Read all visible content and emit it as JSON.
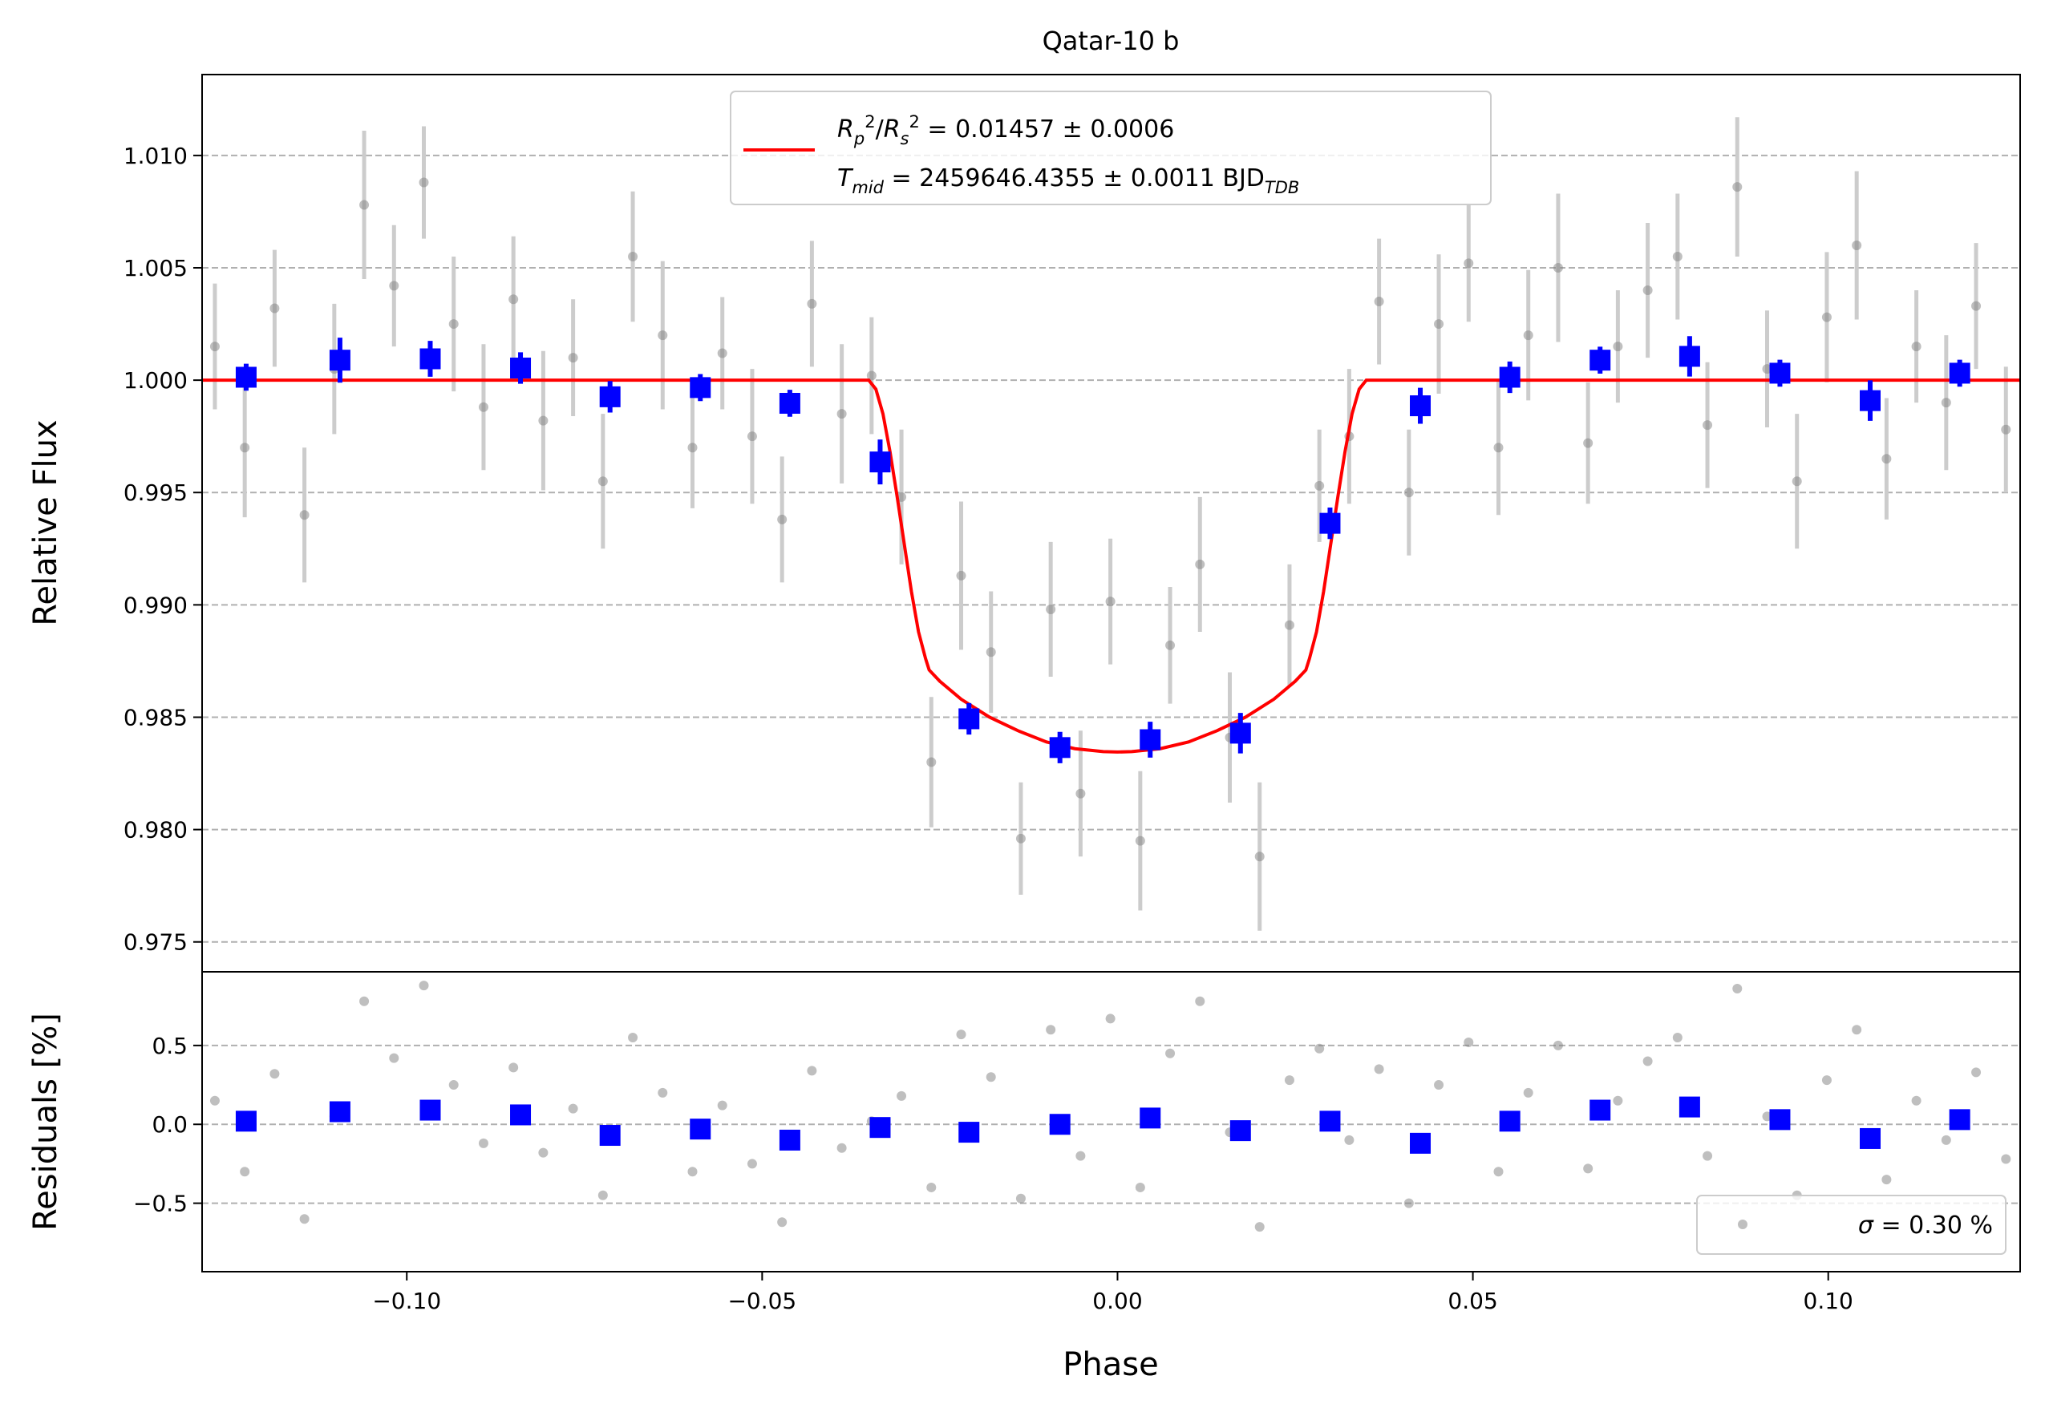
{
  "chart_data": [
    {
      "type": "scatter",
      "title": "Qatar-10 b",
      "ylabel": "Relative Flux",
      "xlim": [
        -0.1288,
        0.127
      ],
      "ylim": [
        0.97367,
        1.0136
      ],
      "yticks": [
        0.975,
        {
          "value": 0.98,
          "label": "0.980"
        },
        0.985,
        {
          "value": 0.99,
          "label": "0.990"
        },
        0.995,
        {
          "value": 1.0,
          "label": "1.000"
        },
        1.005,
        {
          "value": 1.01,
          "label": "1.010"
        }
      ],
      "grid": true,
      "series": [
        {
          "color": "#808080",
          "error_color": "#cccccc",
          "marker": "circle",
          "x": [
            -0.127,
            -0.1228,
            -0.1186,
            -0.1144,
            -0.1102,
            -0.106,
            -0.1018,
            -0.0976,
            -0.0934,
            -0.0892,
            -0.085,
            -0.0808,
            -0.0766,
            -0.0724,
            -0.0682,
            -0.064,
            -0.0598,
            -0.0556,
            -0.0514,
            -0.0472,
            -0.043,
            -0.0388,
            -0.0346,
            -0.0304,
            -0.0262,
            -0.022,
            -0.0178,
            -0.0136,
            -0.0094,
            -0.0052,
            -0.001,
            0.0032,
            0.0074,
            0.0116,
            0.0158,
            0.02,
            0.0242,
            0.0284,
            0.0326,
            0.0368,
            0.041,
            0.0452,
            0.0494,
            0.0536,
            0.0578,
            0.062,
            0.0662,
            0.0704,
            0.0746,
            0.0788,
            0.083,
            0.0872,
            0.0914,
            0.0956,
            0.0998,
            0.104,
            0.1082,
            0.1124,
            0.1166,
            0.1208,
            0.125
          ],
          "values": [
            1.0015,
            0.997,
            1.0032,
            0.994,
            1.0005,
            1.0078,
            1.0042,
            1.0088,
            1.0025,
            0.9988,
            1.0036,
            0.9982,
            1.001,
            0.9955,
            1.0055,
            1.002,
            0.997,
            1.0012,
            0.9975,
            0.9938,
            1.0034,
            0.9985,
            1.0002,
            0.9948,
            0.983,
            0.9913,
            0.9879,
            0.9796,
            0.9898,
            0.9816,
            0.99015,
            0.9795,
            0.9882,
            0.9918,
            0.9841,
            0.9788,
            0.9891,
            0.9953,
            0.9975,
            1.0035,
            0.995,
            1.0025,
            1.0052,
            0.997,
            1.002,
            1.005,
            0.9972,
            1.0015,
            1.004,
            1.0055,
            0.998,
            1.0086,
            1.0005,
            0.9955,
            1.0028,
            1.006,
            0.9965,
            1.0015,
            0.999,
            1.0033,
            0.9978
          ],
          "errors": [
            0.0028,
            0.0031,
            0.0026,
            0.003,
            0.0029,
            0.0033,
            0.0027,
            0.0025,
            0.003,
            0.0028,
            0.0028,
            0.0031,
            0.0026,
            0.003,
            0.0029,
            0.0033,
            0.0027,
            0.0025,
            0.003,
            0.0028,
            0.0028,
            0.0031,
            0.0026,
            0.003,
            0.0029,
            0.0033,
            0.0027,
            0.0025,
            0.003,
            0.0028,
            0.0028,
            0.0031,
            0.0026,
            0.003,
            0.0029,
            0.0033,
            0.0027,
            0.0025,
            0.003,
            0.0028,
            0.0028,
            0.0031,
            0.0026,
            0.003,
            0.0029,
            0.0033,
            0.0027,
            0.0025,
            0.003,
            0.0028,
            0.0028,
            0.0031,
            0.0026,
            0.003,
            0.0029,
            0.0033,
            0.0027,
            0.0025,
            0.003,
            0.0028,
            0.0028
          ]
        },
        {
          "type": "line",
          "color": "#ff0000",
          "x": [
            -0.1288,
            -0.035,
            -0.034,
            -0.033,
            -0.032,
            -0.031,
            -0.03,
            -0.029,
            -0.028,
            -0.027,
            -0.0265,
            -0.025,
            -0.022,
            -0.018,
            -0.014,
            -0.01,
            -0.006,
            -0.002,
            0,
            0.002,
            0.006,
            0.01,
            0.014,
            0.018,
            0.022,
            0.025,
            0.0265,
            0.027,
            0.028,
            0.029,
            0.03,
            0.031,
            0.032,
            0.033,
            0.034,
            0.035,
            0.127
          ],
          "values": [
            1,
            1,
            0.9996,
            0.9985,
            0.9968,
            0.9948,
            0.9927,
            0.9906,
            0.9888,
            0.9876,
            0.9871,
            0.9866,
            0.9858,
            0.985,
            0.9844,
            0.9839,
            0.9836,
            0.98347,
            0.98345,
            0.98347,
            0.9836,
            0.9839,
            0.9844,
            0.985,
            0.9858,
            0.9866,
            0.9871,
            0.9876,
            0.9888,
            0.9906,
            0.9927,
            0.9948,
            0.9968,
            0.9985,
            0.9996,
            1,
            1
          ]
        },
        {
          "color": "#0000ff",
          "error_color": "#0000ff",
          "marker": "square",
          "x": [
            -0.1226,
            -0.1094,
            -0.0967,
            -0.084,
            -0.0714,
            -0.0587,
            -0.0461,
            -0.0334,
            -0.0209,
            -0.0081,
            0.0046,
            0.0173,
            0.0299,
            0.0426,
            0.0552,
            0.0679,
            0.0805,
            0.0932,
            0.1059,
            0.1185
          ],
          "values": [
            1.00013,
            1.00089,
            1.00095,
            1.00054,
            0.99926,
            0.99967,
            0.99897,
            0.99636,
            0.98493,
            0.98365,
            0.984,
            0.98429,
            0.99363,
            0.99886,
            1.00013,
            1.00089,
            1.00106,
            1.00031,
            0.99909,
            1.00031
          ],
          "errors": [
            0.0006,
            0.001,
            0.0008,
            0.0007,
            0.0007,
            0.0006,
            0.0006,
            0.001,
            0.0007,
            0.0007,
            0.0008,
            0.0009,
            0.0007,
            0.0008,
            0.0007,
            0.0006,
            0.0009,
            0.0006,
            0.0009,
            0.0006
          ]
        }
      ],
      "legend": {
        "loc": "upper center",
        "lines": [
          {
            "parts": [
              "R",
              "p",
              "2",
              "/",
              "R",
              "s",
              "2",
              " = 0.01457 ± 0.0006"
            ]
          },
          {
            "parts": [
              "T",
              "mid",
              " = 2459646.4355 ± 0.0011 BJD",
              "TDB"
            ]
          }
        ]
      }
    },
    {
      "type": "scatter",
      "ylabel": "Residuals [%]",
      "xlabel": "Phase",
      "xlim": [
        -0.1288,
        0.127
      ],
      "xticks": [
        {
          "value": -0.1,
          "label": "−0.10"
        },
        {
          "value": -0.05,
          "label": "−0.05"
        },
        {
          "value": 0,
          "label": "0.00"
        },
        {
          "value": 0.05,
          "label": "0.05"
        },
        {
          "value": 0.1,
          "label": "0.10"
        }
      ],
      "ylim": [
        -0.934,
        0.967
      ],
      "yticks": [
        {
          "value": -0.5,
          "label": "−0.5"
        },
        {
          "value": 0,
          "label": "0.0"
        },
        {
          "value": 0.5,
          "label": "0.5"
        }
      ],
      "grid": true,
      "series": [
        {
          "color": "#808080",
          "marker": "circle",
          "x": [
            -0.127,
            -0.1228,
            -0.1186,
            -0.1144,
            -0.1102,
            -0.106,
            -0.1018,
            -0.0976,
            -0.0934,
            -0.0892,
            -0.085,
            -0.0808,
            -0.0766,
            -0.0724,
            -0.0682,
            -0.064,
            -0.0598,
            -0.0556,
            -0.0514,
            -0.0472,
            -0.043,
            -0.0388,
            -0.0346,
            -0.0304,
            -0.0262,
            -0.022,
            -0.0178,
            -0.0136,
            -0.0094,
            -0.0052,
            -0.001,
            0.0032,
            0.0074,
            0.0116,
            0.0158,
            0.02,
            0.0242,
            0.0284,
            0.0326,
            0.0368,
            0.041,
            0.0452,
            0.0494,
            0.0536,
            0.0578,
            0.062,
            0.0662,
            0.0704,
            0.0746,
            0.0788,
            0.083,
            0.0872,
            0.0914,
            0.0956,
            0.0998,
            0.104,
            0.1082,
            0.1124,
            0.1166,
            0.1208,
            0.125
          ],
          "values": [
            0.15,
            -0.3,
            0.32,
            -0.6,
            0.05,
            0.78,
            0.42,
            0.88,
            0.25,
            -0.12,
            0.36,
            -0.18,
            0.1,
            -0.45,
            0.55,
            0.2,
            -0.3,
            0.12,
            -0.25,
            -0.62,
            0.34,
            -0.15,
            0.02,
            0.18,
            -0.4,
            0.57,
            0.3,
            -0.47,
            0.6,
            -0.2,
            0.67,
            -0.4,
            0.45,
            0.78,
            -0.05,
            -0.65,
            0.28,
            0.48,
            -0.1,
            0.35,
            -0.5,
            0.25,
            0.52,
            -0.3,
            0.2,
            0.5,
            -0.28,
            0.15,
            0.4,
            0.55,
            -0.2,
            0.86,
            0.05,
            -0.45,
            0.28,
            0.6,
            -0.35,
            0.15,
            -0.1,
            0.33,
            -0.22
          ]
        },
        {
          "color": "#0000ff",
          "marker": "square",
          "x": [
            -0.1226,
            -0.1094,
            -0.0967,
            -0.084,
            -0.0714,
            -0.0587,
            -0.0461,
            -0.0334,
            -0.0209,
            -0.0081,
            0.0046,
            0.0173,
            0.0299,
            0.0426,
            0.0552,
            0.0679,
            0.0805,
            0.0932,
            0.1059,
            0.1185
          ],
          "values": [
            0.02,
            0.08,
            0.09,
            0.06,
            -0.07,
            -0.03,
            -0.1,
            -0.02,
            -0.05,
            0,
            0.04,
            -0.04,
            0.02,
            -0.12,
            0.02,
            0.09,
            0.11,
            0.03,
            -0.09,
            0.03
          ]
        }
      ],
      "legend": {
        "loc": "lower right",
        "parts": [
          "σ",
          " = 0.30 %"
        ]
      }
    }
  ]
}
